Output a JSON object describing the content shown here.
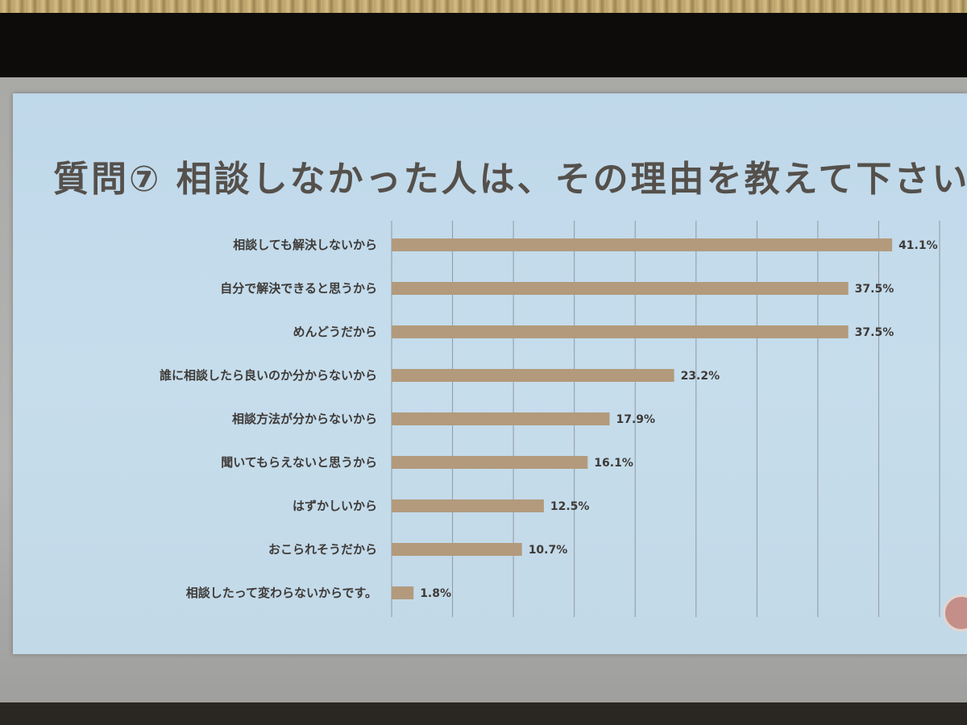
{
  "slide": {
    "title": "質問⑦ 相談しなかった人は、その理由を教えて下さい"
  },
  "colors": {
    "bar": "#b39a7c",
    "background": "#c3daea",
    "text": "#3e3a37"
  },
  "chart_data": {
    "type": "bar",
    "orientation": "horizontal",
    "title": "質問⑦ 相談しなかった人は、その理由を教えて下さい",
    "categories": [
      "相談しても解決しないから",
      "自分で解決できると思うから",
      "めんどうだから",
      "誰に相談したら良いのか分からないから",
      "相談方法が分からないから",
      "聞いてもらえないと思うから",
      "はずかしいから",
      "おこられそうだから",
      "相談したって変わらないからです。"
    ],
    "values": [
      41.1,
      37.5,
      37.5,
      23.2,
      17.9,
      16.1,
      12.5,
      10.7,
      1.8
    ],
    "value_labels": [
      "41.1%",
      "37.5%",
      "37.5%",
      "23.2%",
      "17.9%",
      "16.1%",
      "12.5%",
      "10.7%",
      "1.8%"
    ],
    "xlim": [
      0,
      45
    ],
    "grid": true,
    "legend": "none"
  }
}
